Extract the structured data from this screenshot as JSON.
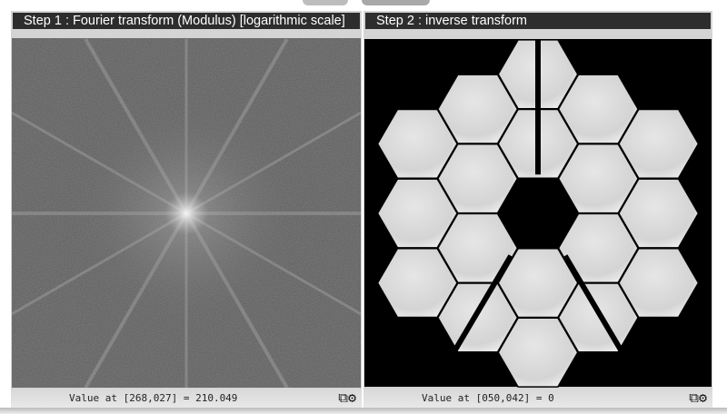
{
  "panels": [
    {
      "title": "Step 1 : Fourier transform (Modulus) [logarithmic scale]",
      "value_label": "Value at [268,027] =  210.049"
    },
    {
      "title": "Step 2 : inverse transform",
      "value_label": "Value at [050,042] =  0"
    }
  ],
  "icons": {
    "open": "external-link-icon",
    "settings": "gear-icon"
  },
  "colors": {
    "header_bg": "#2d2d2d",
    "footer_bg": "#dcdcdc"
  }
}
